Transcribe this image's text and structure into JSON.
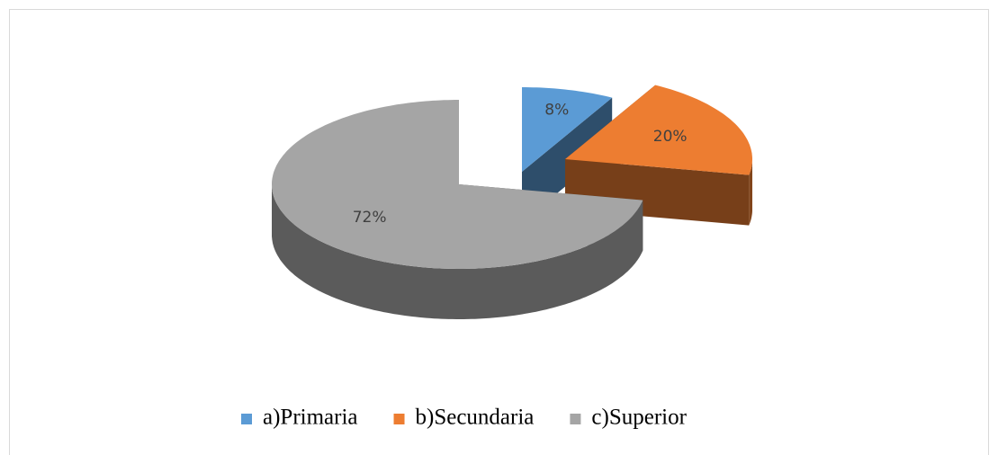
{
  "chart_data": {
    "type": "pie",
    "categories": [
      "a)Primaria",
      "b)Secundaria",
      "c)Superior"
    ],
    "values": [
      8,
      20,
      72
    ],
    "value_labels": [
      "8%",
      "20%",
      "72%"
    ],
    "colors": [
      "#5b9bd5",
      "#ed7d31",
      "#a5a5a5"
    ],
    "legend": "bottom"
  }
}
